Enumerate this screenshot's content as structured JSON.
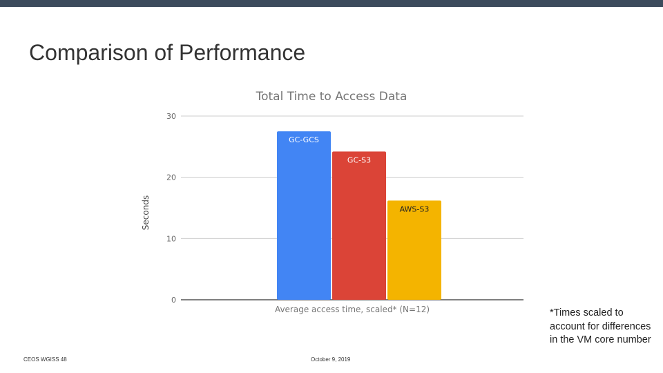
{
  "slide": {
    "title": "Comparison of Performance",
    "footnote": "*Times scaled to account for differences in the VM core number",
    "footer_left": "CEOS WGISS 48",
    "footer_center": "October 9, 2019"
  },
  "colors": {
    "topbar": "#3c4b5c",
    "grid": "#cccccc",
    "axis": "#333333",
    "label_text": "#757575"
  },
  "chart_data": {
    "type": "bar",
    "title": "Total Time to Access Data",
    "xlabel": "Average access time, scaled* (N=12)",
    "ylabel": "Seconds",
    "ylim": [
      0,
      30
    ],
    "yticks": [
      0,
      10,
      20,
      30
    ],
    "grid": true,
    "categories": [
      "Average access time, scaled* (N=12)"
    ],
    "series": [
      {
        "name": "GC-GCS",
        "values": [
          27.5
        ],
        "color": "#4285f4"
      },
      {
        "name": "GC-S3",
        "values": [
          24.2
        ],
        "color": "#db4437"
      },
      {
        "name": "AWS-S3",
        "values": [
          16.2
        ],
        "color": "#f4b400"
      }
    ]
  }
}
